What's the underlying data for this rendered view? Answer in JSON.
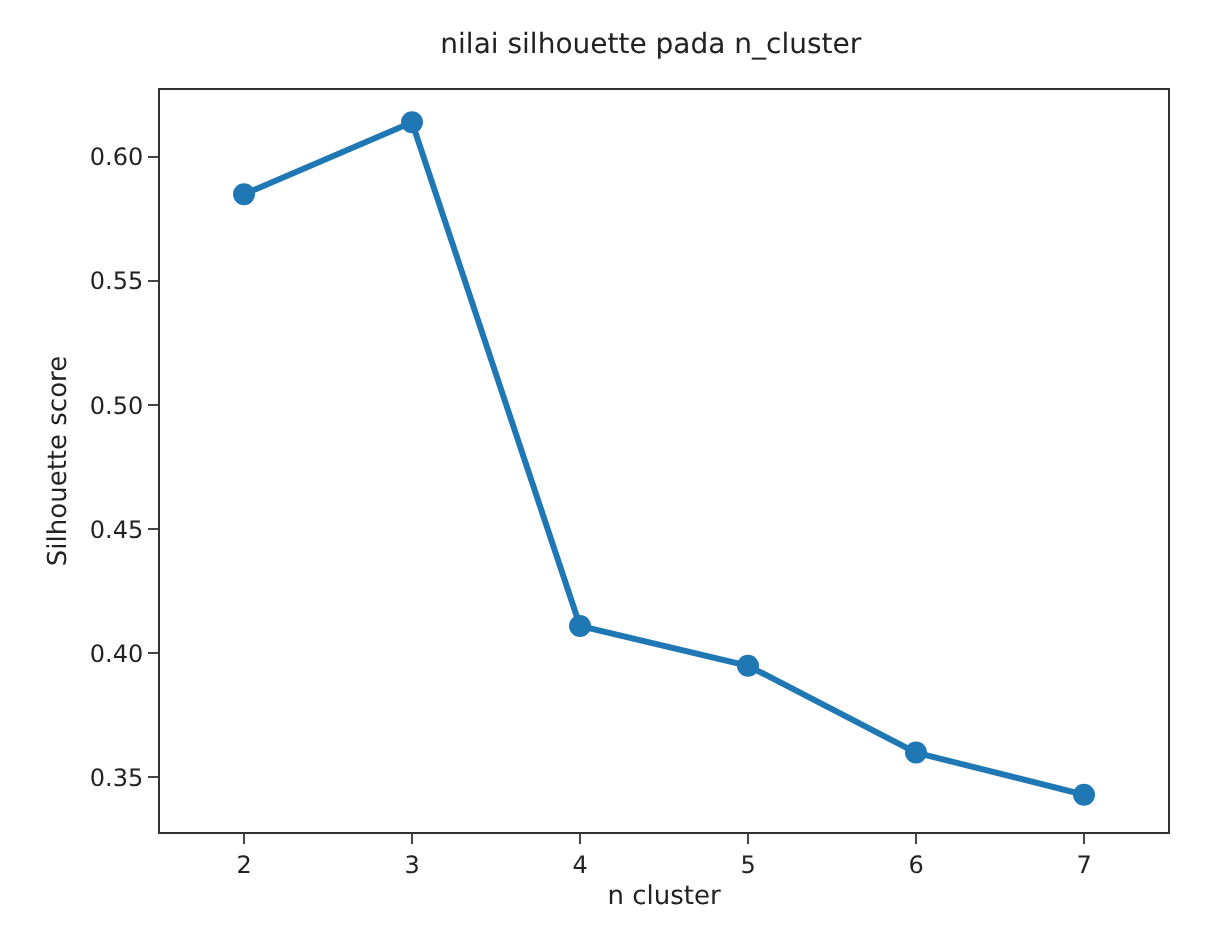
{
  "chart_data": {
    "type": "line",
    "title": "nilai silhouette pada n_cluster",
    "xlabel": "n cluster",
    "ylabel": "Silhouette score",
    "categories": [
      "2",
      "3",
      "4",
      "5",
      "6",
      "7"
    ],
    "series": [
      {
        "color": "#1f77b4",
        "values": [
          0.585,
          0.614,
          0.411,
          0.395,
          0.36,
          0.343
        ]
      }
    ],
    "ylim": [
      0.328,
      0.627
    ],
    "yticks": [
      {
        "value": 0.35,
        "label": "0.35"
      },
      {
        "value": 0.4,
        "label": "0.40"
      },
      {
        "value": 0.45,
        "label": "0.45"
      },
      {
        "value": 0.5,
        "label": "0.50"
      },
      {
        "value": 0.55,
        "label": "0.55"
      },
      {
        "value": 0.6,
        "label": "0.60"
      }
    ],
    "marker": "circle",
    "line_style": "solid"
  }
}
